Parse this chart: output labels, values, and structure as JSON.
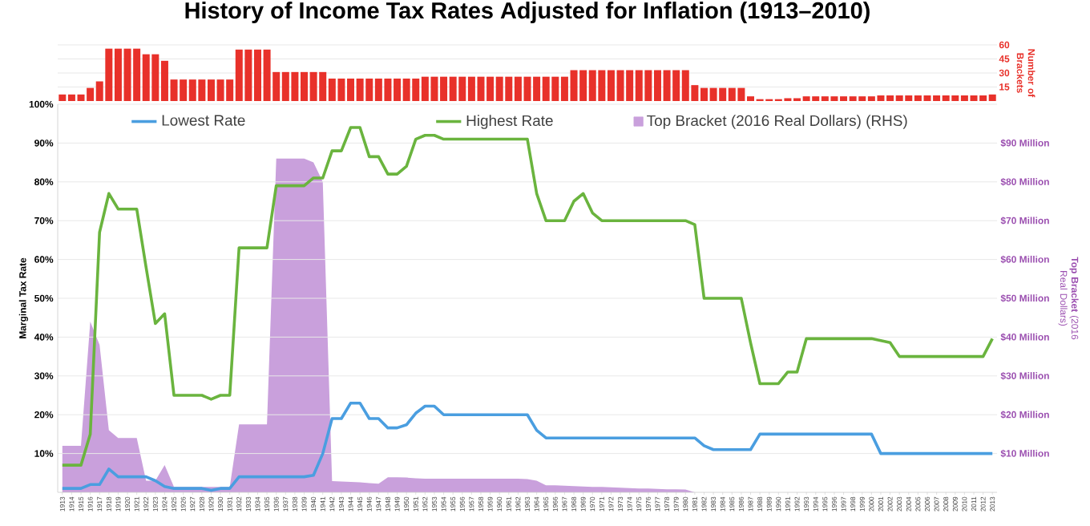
{
  "chart_data": [
    {
      "type": "bar",
      "title": "History of Income Tax Rates Adjusted for Inflation (1913–2010)",
      "ylabel": "Number of Brackets",
      "color": "#e8312a",
      "categories": [
        "1913",
        "1914",
        "1915",
        "1916",
        "1917",
        "1918",
        "1919",
        "1920",
        "1921",
        "1922",
        "1923",
        "1924",
        "1925",
        "1926",
        "1927",
        "1928",
        "1929",
        "1930",
        "1931",
        "1932",
        "1933",
        "1934",
        "1935",
        "1936",
        "1937",
        "1938",
        "1939",
        "1940",
        "1941",
        "1942",
        "1943",
        "1944",
        "1945",
        "1946",
        "1947",
        "1948",
        "1949",
        "1950",
        "1951",
        "1952",
        "1953",
        "1954",
        "1955",
        "1956",
        "1957",
        "1958",
        "1959",
        "1960",
        "1961",
        "1962",
        "1963",
        "1964",
        "1965",
        "1966",
        "1967",
        "1968",
        "1969",
        "1970",
        "1971",
        "1972",
        "1973",
        "1974",
        "1975",
        "1976",
        "1977",
        "1978",
        "1979",
        "1980",
        "1981",
        "1982",
        "1983",
        "1984",
        "1985",
        "1986",
        "1987",
        "1988",
        "1989",
        "1990",
        "1991",
        "1992",
        "1993",
        "1994",
        "1995",
        "1996",
        "1997",
        "1998",
        "1999",
        "2000",
        "2001",
        "2002",
        "2003",
        "2004",
        "2005",
        "2006",
        "2007",
        "2008",
        "2009",
        "2010",
        "2011",
        "2012",
        "2013"
      ],
      "values": [
        7,
        7,
        7,
        14,
        21,
        56,
        56,
        56,
        56,
        50,
        50,
        43,
        23,
        23,
        23,
        23,
        23,
        23,
        23,
        55,
        55,
        55,
        55,
        31,
        31,
        31,
        31,
        31,
        31,
        24,
        24,
        24,
        24,
        24,
        24,
        24,
        24,
        24,
        24,
        26,
        26,
        26,
        26,
        26,
        26,
        26,
        26,
        26,
        26,
        26,
        26,
        26,
        26,
        26,
        26,
        33,
        33,
        33,
        33,
        33,
        33,
        33,
        33,
        33,
        33,
        33,
        33,
        33,
        17,
        14,
        14,
        14,
        14,
        14,
        5,
        2,
        2,
        2,
        3,
        3,
        5,
        5,
        5,
        5,
        5,
        5,
        5,
        5,
        6,
        6,
        6,
        6,
        6,
        6,
        6,
        6,
        6,
        6,
        6,
        6,
        7
      ],
      "ylim": [
        0,
        60
      ],
      "yticks": [
        15,
        30,
        45,
        60
      ],
      "grid": "y",
      "tick_labels": "y"
    },
    {
      "type": "line",
      "ylabel": "Marginal Tax Rate",
      "y2label": "**Top Bracket** (2016 Real Dollars)",
      "categories": [
        "1913",
        "1914",
        "1915",
        "1916",
        "1917",
        "1918",
        "1919",
        "1920",
        "1921",
        "1922",
        "1923",
        "1924",
        "1925",
        "1926",
        "1927",
        "1928",
        "1929",
        "1930",
        "1931",
        "1932",
        "1933",
        "1934",
        "1935",
        "1936",
        "1937",
        "1938",
        "1939",
        "1940",
        "1941",
        "1942",
        "1943",
        "1944",
        "1945",
        "1946",
        "1947",
        "1948",
        "1949",
        "1950",
        "1951",
        "1952",
        "1953",
        "1954",
        "1955",
        "1956",
        "1957",
        "1958",
        "1959",
        "1960",
        "1961",
        "1962",
        "1963",
        "1964",
        "1965",
        "1966",
        "1967",
        "1968",
        "1969",
        "1970",
        "1971",
        "1972",
        "1973",
        "1974",
        "1975",
        "1976",
        "1977",
        "1978",
        "1979",
        "1980",
        "1981",
        "1982",
        "1983",
        "1984",
        "1985",
        "1986",
        "1987",
        "1988",
        "1989",
        "1990",
        "1991",
        "1992",
        "1993",
        "1994",
        "1995",
        "1996",
        "1997",
        "1998",
        "1999",
        "2000",
        "2001",
        "2002",
        "2003",
        "2004",
        "2005",
        "2006",
        "2007",
        "2008",
        "2009",
        "2010",
        "2011",
        "2012",
        "2013"
      ],
      "series": [
        {
          "name": "Lowest Rate",
          "color": "#4a9ee0",
          "values": [
            1,
            1,
            1,
            2,
            2,
            6,
            4,
            4,
            4,
            4,
            3,
            1.5,
            1,
            1,
            1,
            1,
            0.5,
            1,
            1,
            4,
            4,
            4,
            4,
            4,
            4,
            4,
            4,
            4.4,
            10,
            19,
            19,
            23,
            23,
            19,
            19,
            16.6,
            16.6,
            17.4,
            20.4,
            22.2,
            22.2,
            20,
            20,
            20,
            20,
            20,
            20,
            20,
            20,
            20,
            20,
            16,
            14,
            14,
            14,
            14,
            14,
            14,
            14,
            14,
            14,
            14,
            14,
            14,
            14,
            14,
            14,
            14,
            14,
            12,
            11,
            11,
            11,
            11,
            11,
            15,
            15,
            15,
            15,
            15,
            15,
            15,
            15,
            15,
            15,
            15,
            15,
            15,
            10,
            10,
            10,
            10,
            10,
            10,
            10,
            10,
            10,
            10,
            10,
            10,
            10
          ]
        },
        {
          "name": "Highest Rate",
          "color": "#6ab43e",
          "values": [
            7,
            7,
            7,
            15,
            67,
            77,
            73,
            73,
            73,
            58,
            43.5,
            46,
            25,
            25,
            25,
            25,
            24,
            25,
            25,
            63,
            63,
            63,
            63,
            79,
            79,
            79,
            79,
            81,
            81,
            88,
            88,
            94,
            94,
            86.5,
            86.5,
            82,
            82,
            84,
            91,
            92,
            92,
            91,
            91,
            91,
            91,
            91,
            91,
            91,
            91,
            91,
            91,
            77,
            70,
            70,
            70,
            75,
            77,
            72,
            70,
            70,
            70,
            70,
            70,
            70,
            70,
            70,
            70,
            70,
            69,
            50,
            50,
            50,
            50,
            50,
            38.5,
            28,
            28,
            28,
            31,
            31,
            39.6,
            39.6,
            39.6,
            39.6,
            39.6,
            39.6,
            39.6,
            39.6,
            39.1,
            38.6,
            35,
            35,
            35,
            35,
            35,
            35,
            35,
            35,
            35,
            35,
            39.6
          ]
        },
        {
          "name": "Top Bracket (2016 Real Dollars) (RHS)",
          "type": "area",
          "axis": "y2",
          "color": "#c9a0dc",
          "values": [
            12,
            12,
            12,
            44,
            38,
            16,
            14,
            14,
            14,
            3,
            3,
            7,
            1.4,
            1.4,
            1.4,
            1.4,
            1.4,
            1.4,
            1.4,
            17.5,
            17.5,
            17.5,
            17.5,
            86,
            86,
            86,
            86,
            85,
            80,
            2.9,
            2.8,
            2.7,
            2.6,
            2.4,
            2.2,
            3.9,
            3.9,
            3.8,
            3.6,
            3.5,
            3.5,
            3.5,
            3.5,
            3.5,
            3.5,
            3.5,
            3.5,
            3.5,
            3.5,
            3.5,
            3.4,
            3,
            1.8,
            1.8,
            1.7,
            1.6,
            1.5,
            1.4,
            1.4,
            1.3,
            1.2,
            1.1,
            1,
            1,
            0.9,
            0.8,
            0.8,
            0.7,
            0,
            null,
            null,
            null,
            null,
            null,
            null,
            null,
            null,
            null,
            null,
            null,
            null,
            null,
            null,
            null,
            null,
            null,
            null,
            null,
            null,
            null,
            null,
            null,
            null,
            null,
            null,
            null,
            null,
            null,
            null,
            null,
            null
          ]
        }
      ],
      "ylim": [
        0,
        100
      ],
      "yticks": [
        {
          "value": 10,
          "label": "10%"
        },
        {
          "value": 20,
          "label": "20%"
        },
        {
          "value": 30,
          "label": "30%"
        },
        {
          "value": 40,
          "label": "40%"
        },
        {
          "value": 50,
          "label": "50%"
        },
        {
          "value": 60,
          "label": "60%"
        },
        {
          "value": 70,
          "label": "70%"
        },
        {
          "value": 80,
          "label": "80%"
        },
        {
          "value": 90,
          "label": "90%"
        },
        {
          "value": 100,
          "label": "100%"
        }
      ],
      "y2lim": [
        0,
        100
      ],
      "y2ticks": [
        {
          "value": 10,
          "label": "$10 Million"
        },
        {
          "value": 20,
          "label": "$20 Million"
        },
        {
          "value": 30,
          "label": "$30 Million"
        },
        {
          "value": 40,
          "label": "$40 Million"
        },
        {
          "value": 50,
          "label": "$50 Million"
        },
        {
          "value": 60,
          "label": "$60 Million"
        },
        {
          "value": 70,
          "label": "$70 Million"
        },
        {
          "value": 80,
          "label": "$80 Million"
        },
        {
          "value": 90,
          "label": "$90 Million"
        }
      ],
      "grid": "y",
      "legend": "top"
    }
  ]
}
